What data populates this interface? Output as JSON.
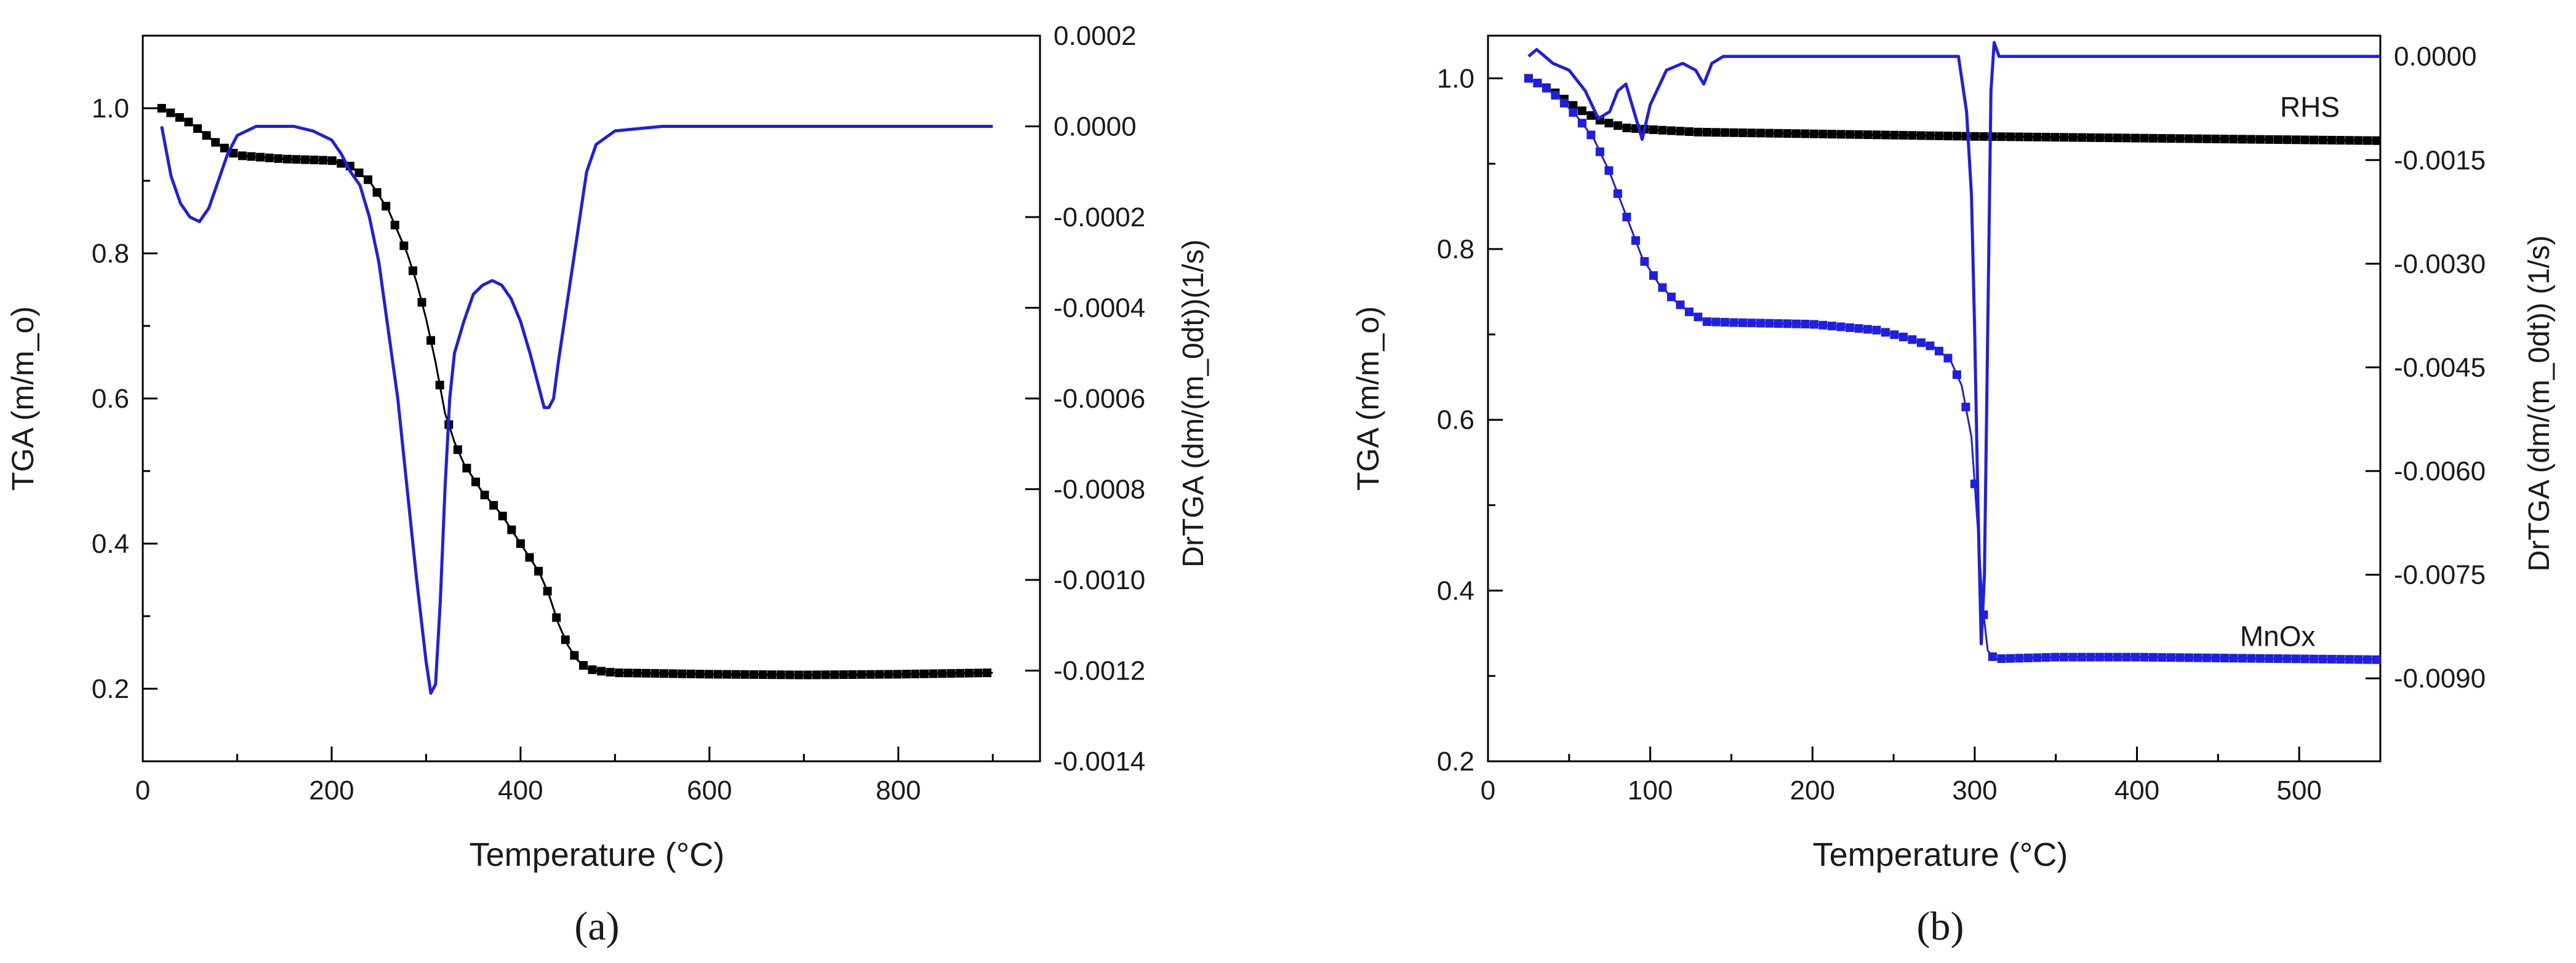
{
  "chart_data": [
    {
      "type": "line",
      "panel_label": "(a)",
      "xlabel": "Temperature (°C)",
      "ylabel": "TGA (m/m_o)",
      "y2label": "DrTGA (dm/(m_0dt))(1/s)",
      "xlim": [
        0,
        950
      ],
      "ylim": [
        0.1,
        1.1
      ],
      "y2lim": [
        -0.0014,
        0.0002
      ],
      "x_ticks": [
        0,
        200,
        400,
        600,
        800
      ],
      "x_tick_labels": [
        "0",
        "200",
        "400",
        "600",
        "800"
      ],
      "y_ticks": [
        0.2,
        0.4,
        0.6,
        0.8,
        1.0
      ],
      "y_tick_labels": [
        "0.2",
        "0.4",
        "0.6",
        "0.8",
        "1.0"
      ],
      "y2_ticks": [
        -0.0014,
        -0.0012,
        -0.001,
        -0.0008,
        -0.0006,
        -0.0004,
        -0.0002,
        0,
        0.0002
      ],
      "y2_tick_labels": [
        "-0.0014",
        "-0.0012",
        "-0.0010",
        "-0.0008",
        "-0.0006",
        "-0.0004",
        "-0.0002",
        "0.0000",
        "0.0002"
      ],
      "grid": false,
      "series": [
        {
          "axis": "left",
          "color": "#000000",
          "marker": "square",
          "x": [
            20,
            50,
            80,
            100,
            150,
            200,
            220,
            240,
            260,
            280,
            290,
            300,
            310,
            320,
            330,
            340,
            360,
            380,
            400,
            420,
            430,
            440,
            450,
            460,
            470,
            480,
            500,
            550,
            600,
            700,
            800,
            900
          ],
          "values": [
            1.0,
            0.98,
            0.95,
            0.935,
            0.93,
            0.928,
            0.92,
            0.9,
            0.86,
            0.8,
            0.76,
            0.71,
            0.65,
            0.58,
            0.54,
            0.51,
            0.47,
            0.44,
            0.4,
            0.36,
            0.33,
            0.29,
            0.26,
            0.24,
            0.228,
            0.225,
            0.222,
            0.221,
            0.22,
            0.219,
            0.22,
            0.222
          ]
        },
        {
          "axis": "right",
          "color": "#1f1fe0",
          "marker": "none",
          "x": [
            20,
            30,
            40,
            50,
            60,
            70,
            80,
            90,
            100,
            120,
            140,
            160,
            180,
            200,
            210,
            220,
            230,
            240,
            250,
            260,
            270,
            280,
            290,
            300,
            305,
            310,
            315,
            320,
            325,
            330,
            340,
            350,
            360,
            370,
            380,
            390,
            400,
            410,
            420,
            425,
            430,
            435,
            440,
            450,
            460,
            470,
            480,
            500,
            550,
            600,
            700,
            800,
            900
          ],
          "values": [
            0.0,
            -0.00011,
            -0.00017,
            -0.0002,
            -0.00021,
            -0.00018,
            -0.00012,
            -6e-05,
            -2e-05,
            0.0,
            0.0,
            0.0,
            -1e-05,
            -3e-05,
            -6e-05,
            -0.0001,
            -0.00013,
            -0.0002,
            -0.0003,
            -0.00045,
            -0.0006,
            -0.0008,
            -0.001,
            -0.00118,
            -0.00125,
            -0.00123,
            -0.00105,
            -0.0008,
            -0.0006,
            -0.0005,
            -0.00043,
            -0.00037,
            -0.00035,
            -0.00034,
            -0.00035,
            -0.00038,
            -0.00043,
            -0.0005,
            -0.00058,
            -0.00062,
            -0.00062,
            -0.0006,
            -0.00052,
            -0.00038,
            -0.00024,
            -0.0001,
            -4e-05,
            -1e-05,
            0.0,
            0.0,
            0.0,
            0.0,
            0.0
          ]
        }
      ]
    },
    {
      "type": "line",
      "panel_label": "(b)",
      "xlabel": "Temperature (°C)",
      "ylabel": "TGA (m/m_o)",
      "y2label": "DrTGA (dm/(m_0dt)) (1/s)",
      "xlim": [
        0,
        550
      ],
      "ylim": [
        0.2,
        1.05
      ],
      "y2lim": [
        -0.0102,
        0.0003
      ],
      "x_ticks": [
        0,
        100,
        200,
        300,
        400,
        500
      ],
      "x_tick_labels": [
        "0",
        "100",
        "200",
        "300",
        "400",
        "500"
      ],
      "y_ticks": [
        0.2,
        0.4,
        0.6,
        0.8,
        1.0
      ],
      "y_tick_labels": [
        "0.2",
        "0.4",
        "0.6",
        "0.8",
        "1.0"
      ],
      "y2_ticks": [
        0,
        -0.0015,
        -0.003,
        -0.0045,
        -0.006,
        -0.0075,
        -0.009
      ],
      "y2_tick_labels": [
        "0.0000",
        "-0.0015",
        "-0.0030",
        "-0.0045",
        "-0.0060",
        "-0.0075",
        "-0.0090"
      ],
      "grid": false,
      "annotations": [
        {
          "text": "RHS",
          "x": 525,
          "y": 0.955
        },
        {
          "text": "MnOx",
          "x": 510,
          "y": 0.335
        }
      ],
      "series": [
        {
          "axis": "left",
          "color": "#000000",
          "marker": "square",
          "x": [
            25,
            40,
            55,
            70,
            85,
            100,
            130,
            200,
            300,
            400,
            500,
            550
          ],
          "values": [
            1.0,
            0.985,
            0.965,
            0.95,
            0.942,
            0.94,
            0.937,
            0.935,
            0.932,
            0.93,
            0.928,
            0.927
          ]
        },
        {
          "axis": "left",
          "color": "#1f1fe0",
          "marker": "square",
          "x": [
            25,
            35,
            45,
            55,
            65,
            75,
            85,
            95,
            105,
            115,
            125,
            135,
            150,
            200,
            240,
            260,
            275,
            285,
            292,
            298,
            302,
            305,
            308,
            312,
            350,
            400,
            450,
            500,
            550
          ],
          "values": [
            1.0,
            0.99,
            0.975,
            0.955,
            0.93,
            0.89,
            0.84,
            0.79,
            0.76,
            0.74,
            0.725,
            0.715,
            0.714,
            0.712,
            0.705,
            0.695,
            0.685,
            0.67,
            0.64,
            0.58,
            0.47,
            0.38,
            0.33,
            0.32,
            0.322,
            0.322,
            0.321,
            0.32,
            0.319
          ]
        },
        {
          "axis": "right",
          "color": "#1f1fe0",
          "marker": "none",
          "x": [
            25,
            30,
            35,
            40,
            50,
            60,
            68,
            75,
            80,
            85,
            90,
            95,
            100,
            110,
            120,
            128,
            133,
            138,
            145,
            160,
            200,
            250,
            290,
            295,
            298,
            300,
            302,
            304,
            306,
            308,
            310,
            312,
            315,
            320,
            350,
            400,
            450,
            500,
            550
          ],
          "values": [
            0.0,
            0.0001,
            0.0,
            -0.0001,
            -0.0002,
            -0.0005,
            -0.0009,
            -0.0008,
            -0.0005,
            -0.0004,
            -0.0008,
            -0.0012,
            -0.0007,
            -0.0002,
            -0.0001,
            -0.0002,
            -0.0004,
            -0.0001,
            0.0,
            0.0,
            0.0,
            0.0,
            0.0,
            -0.0008,
            -0.002,
            -0.004,
            -0.0065,
            -0.0085,
            -0.0075,
            -0.004,
            -0.0005,
            0.0002,
            0.0,
            0.0,
            0.0,
            0.0,
            0.0,
            0.0,
            0.0
          ]
        }
      ]
    }
  ]
}
